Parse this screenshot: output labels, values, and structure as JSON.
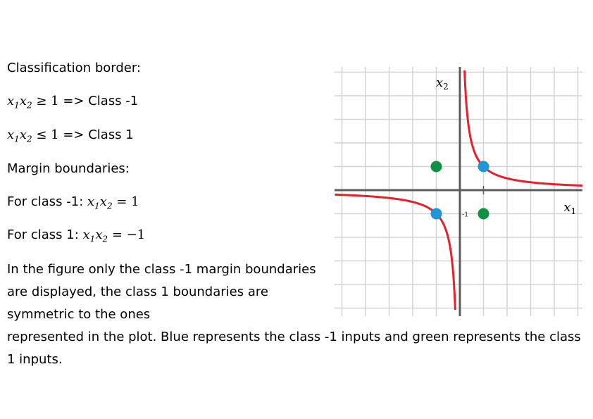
{
  "text": {
    "classification_title": "Classification border:",
    "rule1_suffix": "=> Class -1",
    "rule2_suffix": "=> Class 1",
    "margin_title": "Margin boundaries:",
    "for_class_neg1": "For class -1:",
    "for_class_1": "For class 1:",
    "paragraph_1": "In the figure only the class -1 margin boundaries are displayed, the class 1 boundaries are symmetric to the ones",
    "paragraph_2": "represented in the plot. Blue represents the class -1 inputs and green represents the class 1 inputs."
  },
  "math": {
    "x": "x",
    "sub1": "1",
    "sub2": "2",
    "geq": "≥",
    "leq": "≤",
    "eq": "=",
    "one": "1",
    "neg_one": "−1"
  },
  "plot": {
    "x_axis_label": "x",
    "x_axis_label_sub": "1",
    "y_axis_label": "x",
    "y_axis_label_sub": "2",
    "tick_label": "-1",
    "colors": {
      "grid": "#d4d4d4",
      "axis": "#5c5c5c",
      "curve": "#e8202c",
      "class_neg1": "#1f96d6",
      "class_1": "#119043"
    },
    "hyperbola": "x1*x2 = 1",
    "points_class_neg1": [
      {
        "x": 1,
        "y": 1
      },
      {
        "x": -1,
        "y": -1
      }
    ],
    "points_class_1": [
      {
        "x": -1,
        "y": 1
      },
      {
        "x": 1,
        "y": -1
      }
    ],
    "x_range": [
      -5,
      5
    ],
    "y_range": [
      -5,
      5
    ]
  }
}
